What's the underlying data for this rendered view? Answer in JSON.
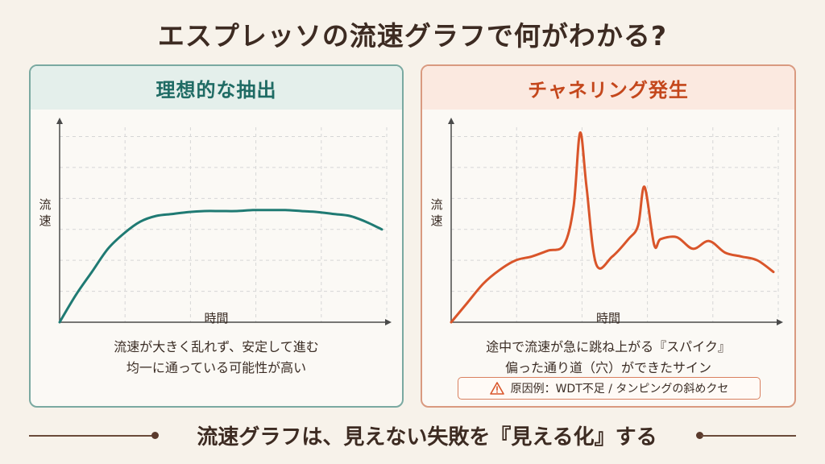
{
  "title": "エスプレッソの流速グラフで何がわかる?",
  "left_panel": {
    "heading": "理想的な抽出",
    "ylabel": "流速",
    "xlabel": "時間",
    "desc_line1": "流速が大きく乱れず、安定して進む",
    "desc_line2": "均一に通っている可能性が高い",
    "line_color": "#1f7a73"
  },
  "right_panel": {
    "heading": "チャネリング発生",
    "ylabel": "流速",
    "xlabel": "時間",
    "desc_line1": "途中で流速が急に跳ね上がる『スパイク』",
    "desc_line2": "偏った通り道（穴）ができたサイン",
    "cause": "原因例：WDT不足 / タンピングの斜めクセ",
    "line_color": "#d9552a"
  },
  "footer": "流速グラフは、見えない失敗を『見える化』する",
  "chart_data": [
    {
      "type": "line",
      "title": "理想的な抽出",
      "xlabel": "時間",
      "ylabel": "流速",
      "grid": true,
      "x": [
        0,
        0.05,
        0.1,
        0.15,
        0.2,
        0.25,
        0.3,
        0.35,
        0.4,
        0.45,
        0.5,
        0.55,
        0.6,
        0.65,
        0.7,
        0.75,
        0.8,
        0.85,
        0.9,
        0.95,
        1.0
      ],
      "values": [
        0,
        0.14,
        0.26,
        0.38,
        0.46,
        0.52,
        0.55,
        0.56,
        0.57,
        0.575,
        0.575,
        0.575,
        0.58,
        0.58,
        0.58,
        0.575,
        0.57,
        0.56,
        0.55,
        0.52,
        0.48
      ],
      "ylim": [
        0,
        1
      ]
    },
    {
      "type": "line",
      "title": "チャネリング発生",
      "xlabel": "時間",
      "ylabel": "流速",
      "grid": true,
      "x": [
        0,
        0.05,
        0.1,
        0.15,
        0.2,
        0.25,
        0.3,
        0.35,
        0.38,
        0.4,
        0.42,
        0.45,
        0.5,
        0.55,
        0.58,
        0.6,
        0.63,
        0.65,
        0.7,
        0.75,
        0.8,
        0.85,
        0.9,
        0.95,
        1.0
      ],
      "values": [
        0,
        0.1,
        0.2,
        0.27,
        0.32,
        0.34,
        0.37,
        0.4,
        0.6,
        0.98,
        0.7,
        0.3,
        0.34,
        0.43,
        0.5,
        0.7,
        0.4,
        0.43,
        0.44,
        0.38,
        0.42,
        0.36,
        0.34,
        0.32,
        0.26
      ],
      "ylim": [
        0,
        1
      ]
    }
  ]
}
